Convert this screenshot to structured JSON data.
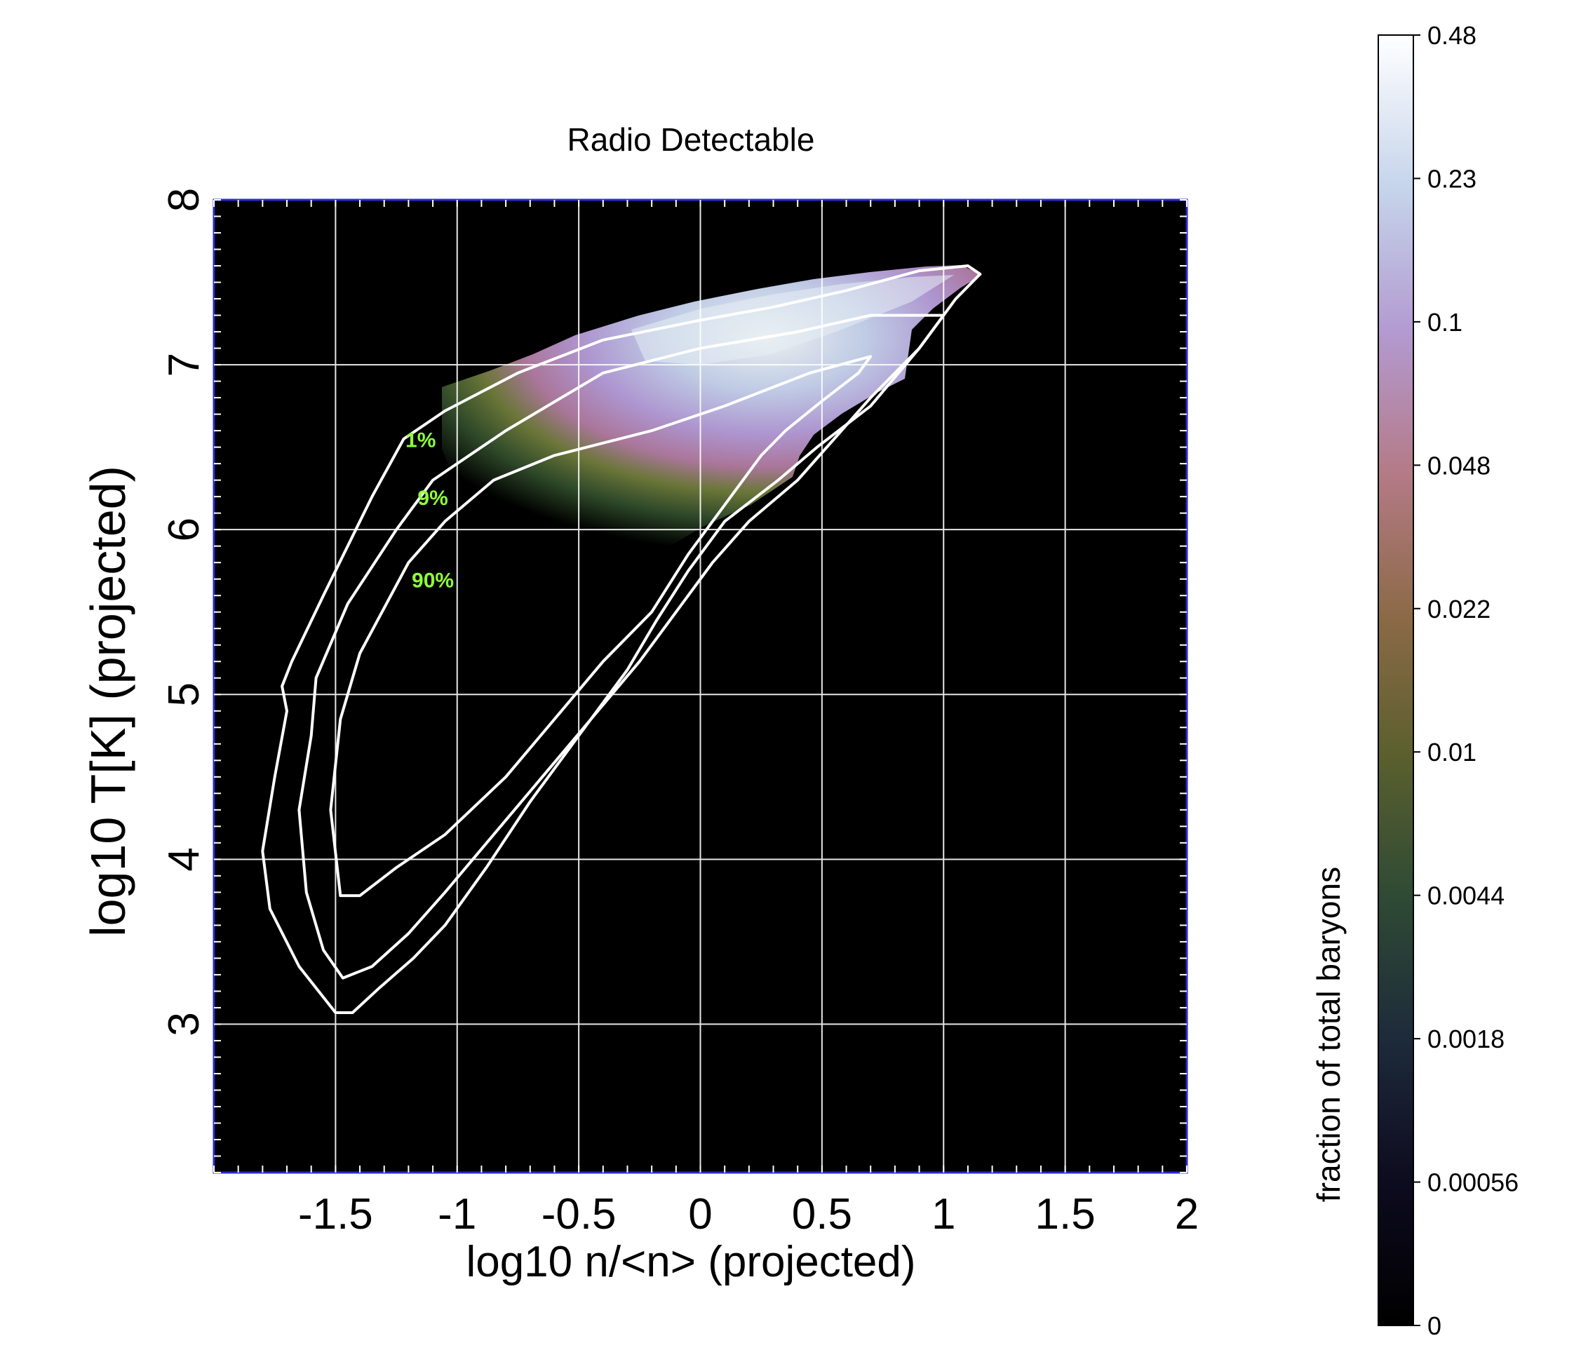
{
  "chart_data": {
    "type": "heatmap",
    "title": "Radio Detectable",
    "xlabel": "log10 n/<n> (projected)",
    "ylabel": "log10 T[K] (projected)",
    "xlim": [
      -2,
      2
    ],
    "ylim": [
      2.1,
      8
    ],
    "x_ticks": [
      "-1.5",
      "-1",
      "-0.5",
      "0",
      "0.5",
      "1",
      "1.5",
      "2"
    ],
    "y_ticks": [
      "3",
      "4",
      "5",
      "6",
      "7",
      "8"
    ],
    "grid": true,
    "colorbar": {
      "label": "fraction of total baryons",
      "ticks": [
        "0.48",
        "0.23",
        "0.1",
        "0.048",
        "0.022",
        "0.01",
        "0.0044",
        "0.0018",
        "0.00056",
        "0"
      ],
      "colors": [
        "#000000",
        "#0d0b1e",
        "#1d2a3a",
        "#2e4a35",
        "#5a5f2e",
        "#8c6a47",
        "#b47a86",
        "#b39ad1",
        "#c5d4ea",
        "#ffffff"
      ]
    },
    "contours": [
      {
        "label": "1%",
        "color": "#ffffff",
        "points": [
          [
            -1.22,
            6.55
          ],
          [
            -1.35,
            6.2
          ],
          [
            -1.55,
            5.6
          ],
          [
            -1.68,
            5.2
          ],
          [
            -1.72,
            5.05
          ],
          [
            -1.7,
            4.9
          ],
          [
            -1.75,
            4.5
          ],
          [
            -1.8,
            4.05
          ],
          [
            -1.77,
            3.7
          ],
          [
            -1.65,
            3.35
          ],
          [
            -1.5,
            3.07
          ],
          [
            -1.43,
            3.07
          ],
          [
            -1.32,
            3.22
          ],
          [
            -1.18,
            3.4
          ],
          [
            -1.05,
            3.6
          ],
          [
            -0.88,
            3.95
          ],
          [
            -0.7,
            4.35
          ],
          [
            -0.5,
            4.75
          ],
          [
            -0.3,
            5.15
          ],
          [
            -0.18,
            5.45
          ],
          [
            -0.05,
            5.75
          ],
          [
            0.1,
            6.05
          ],
          [
            0.32,
            6.3
          ],
          [
            0.48,
            6.5
          ],
          [
            0.7,
            6.75
          ],
          [
            0.9,
            7.1
          ],
          [
            1.05,
            7.4
          ],
          [
            1.15,
            7.55
          ],
          [
            1.1,
            7.6
          ],
          [
            0.9,
            7.57
          ],
          [
            0.6,
            7.45
          ],
          [
            0.3,
            7.35
          ],
          [
            0.0,
            7.27
          ],
          [
            -0.4,
            7.15
          ],
          [
            -0.75,
            6.95
          ],
          [
            -1.05,
            6.72
          ],
          [
            -1.22,
            6.55
          ]
        ]
      },
      {
        "label": "9%",
        "color": "#ffffff",
        "points": [
          [
            -1.1,
            6.3
          ],
          [
            -1.25,
            6.0
          ],
          [
            -1.45,
            5.55
          ],
          [
            -1.58,
            5.1
          ],
          [
            -1.6,
            4.75
          ],
          [
            -1.65,
            4.3
          ],
          [
            -1.62,
            3.8
          ],
          [
            -1.55,
            3.45
          ],
          [
            -1.47,
            3.28
          ],
          [
            -1.35,
            3.35
          ],
          [
            -1.2,
            3.55
          ],
          [
            -1.05,
            3.8
          ],
          [
            -0.85,
            4.15
          ],
          [
            -0.65,
            4.5
          ],
          [
            -0.45,
            4.85
          ],
          [
            -0.25,
            5.2
          ],
          [
            -0.1,
            5.5
          ],
          [
            0.05,
            5.8
          ],
          [
            0.2,
            6.05
          ],
          [
            0.4,
            6.3
          ],
          [
            0.55,
            6.55
          ],
          [
            0.7,
            6.8
          ],
          [
            0.9,
            7.1
          ],
          [
            1.0,
            7.3
          ],
          [
            0.7,
            7.3
          ],
          [
            0.4,
            7.2
          ],
          [
            0.0,
            7.1
          ],
          [
            -0.4,
            6.95
          ],
          [
            -0.8,
            6.6
          ],
          [
            -1.1,
            6.3
          ]
        ]
      },
      {
        "label": "90%",
        "color": "#ffffff",
        "points": [
          [
            -1.05,
            6.05
          ],
          [
            -1.2,
            5.8
          ],
          [
            -1.4,
            5.25
          ],
          [
            -1.48,
            4.85
          ],
          [
            -1.52,
            4.3
          ],
          [
            -1.48,
            3.78
          ],
          [
            -1.4,
            3.78
          ],
          [
            -1.25,
            3.95
          ],
          [
            -1.05,
            4.15
          ],
          [
            -0.8,
            4.5
          ],
          [
            -0.6,
            4.85
          ],
          [
            -0.4,
            5.2
          ],
          [
            -0.2,
            5.5
          ],
          [
            -0.05,
            5.85
          ],
          [
            0.1,
            6.15
          ],
          [
            0.25,
            6.45
          ],
          [
            0.35,
            6.6
          ],
          [
            0.5,
            6.78
          ],
          [
            0.65,
            6.95
          ],
          [
            0.7,
            7.05
          ],
          [
            0.45,
            6.95
          ],
          [
            0.1,
            6.75
          ],
          [
            -0.2,
            6.6
          ],
          [
            -0.6,
            6.45
          ],
          [
            -0.85,
            6.3
          ],
          [
            -1.05,
            6.05
          ]
        ]
      }
    ]
  }
}
